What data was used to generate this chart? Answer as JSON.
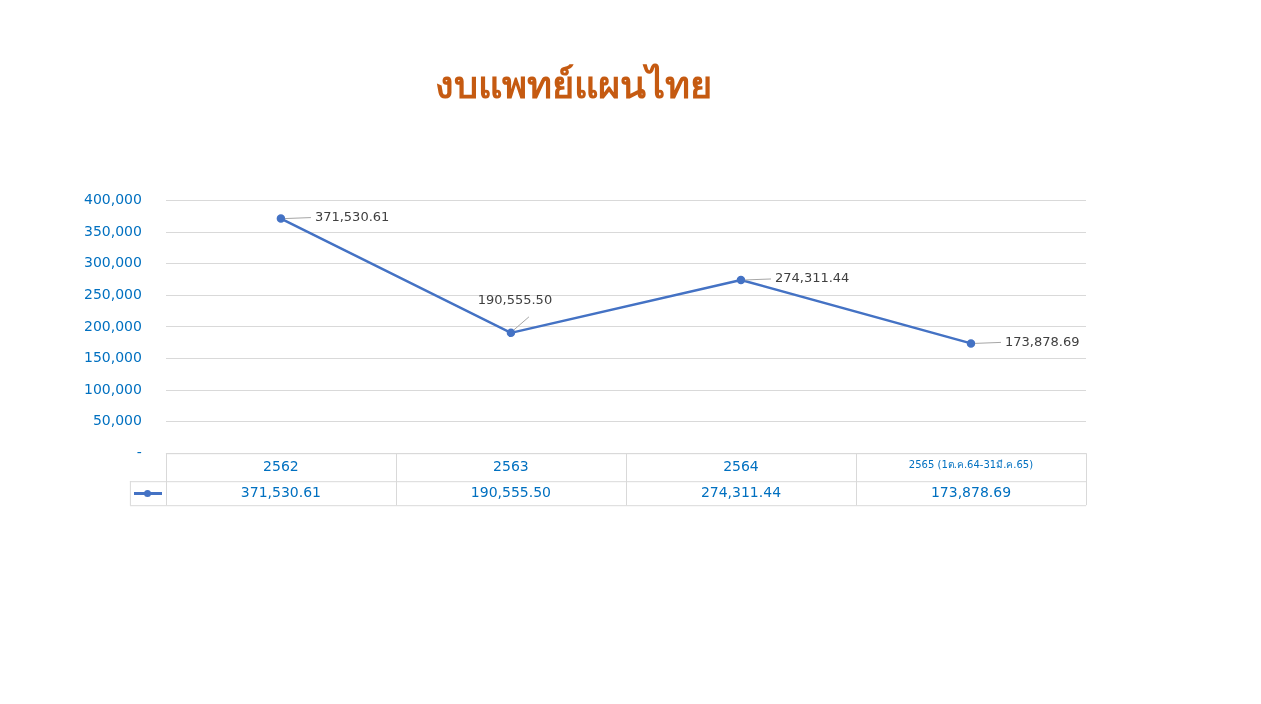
{
  "chart_data": {
    "type": "line",
    "title": "งบแพทย์แผนไทย",
    "categories": [
      "2562",
      "2563",
      "2564",
      "2565 (1ต.ค.64-31มี.ค.65)"
    ],
    "series": [
      {
        "color": "#4472c4",
        "values": [
          371530.61,
          190555.5,
          274311.44,
          173878.69
        ],
        "value_labels": [
          "371,530.61",
          "190,555.50",
          "274,311.44",
          "173,878.69"
        ]
      }
    ],
    "ylim": [
      0,
      400000
    ],
    "yticks": [
      {
        "value": 0,
        "label": "-"
      },
      {
        "value": 50000,
        "label": "50,000"
      },
      {
        "value": 100000,
        "label": "100,000"
      },
      {
        "value": 150000,
        "label": "150,000"
      },
      {
        "value": 200000,
        "label": "200,000"
      },
      {
        "value": 250000,
        "label": "250,000"
      },
      {
        "value": 300000,
        "label": "300,000"
      },
      {
        "value": 350000,
        "label": "350,000"
      },
      {
        "value": 400000,
        "label": "400,000"
      }
    ],
    "grid": "y",
    "legend": false,
    "marker": "circle",
    "line_style": "solid"
  }
}
